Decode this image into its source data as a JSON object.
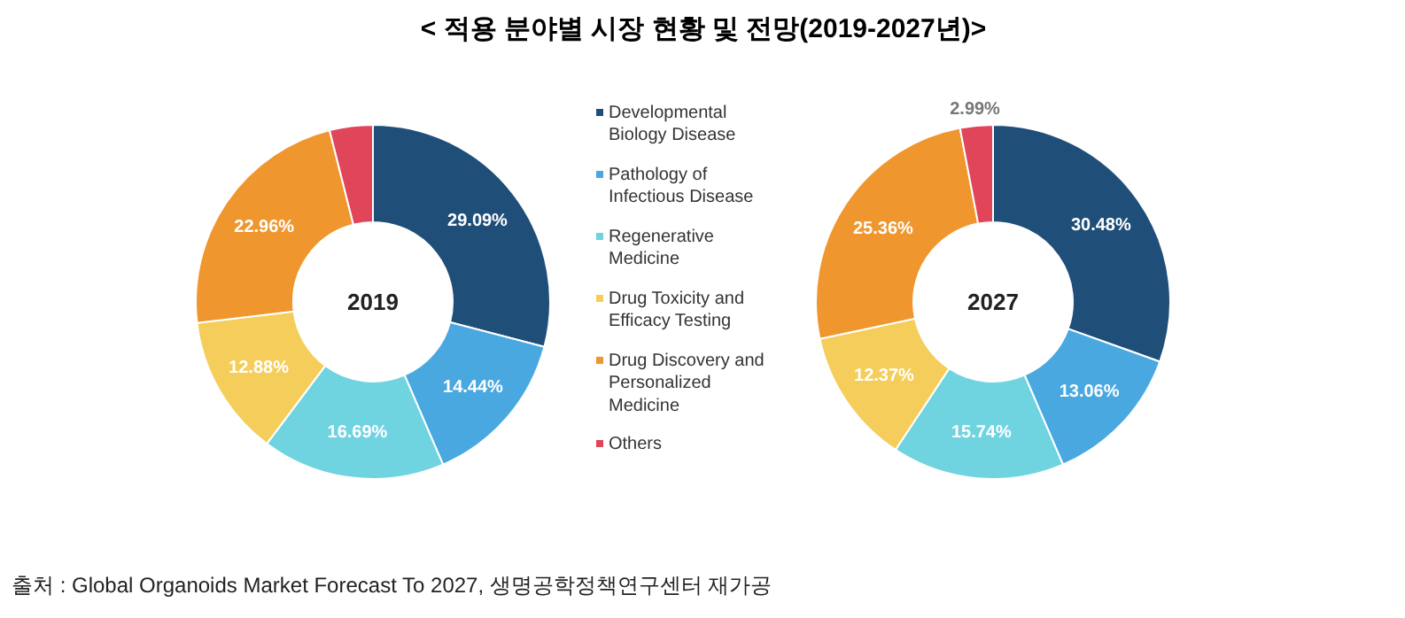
{
  "chart_data": {
    "type": "donut",
    "title": "< 적용 분야별 시장 현황 및 전망(2019-2027년)>",
    "legend": "right",
    "annotations": [
      "출처 : Global Organoids Market Forecast To 2027, 생명공학정책연구센터 재가공"
    ],
    "categories": [
      "Developmental Biology Disease",
      "Pathology of Infectious Disease",
      "Regenerative Medicine",
      "Drug Toxicity and Efficacy Testing",
      "Drug Discovery and Personalized Medicine",
      "Others"
    ],
    "colors": [
      "#1f4e79",
      "#4aa8e0",
      "#6fd3e0",
      "#f5cd5a",
      "#f0962e",
      "#e0455a"
    ],
    "series": [
      {
        "name": "2019",
        "values": [
          29.09,
          14.44,
          16.69,
          12.88,
          22.96,
          3.94
        ],
        "value_labels": [
          "29.09%",
          "14.44%",
          "16.69%",
          "12.88%",
          "22.96%",
          null
        ]
      },
      {
        "name": "2027",
        "values": [
          30.48,
          13.06,
          15.74,
          12.37,
          25.36,
          2.99
        ],
        "value_labels": [
          "30.48%",
          "13.06%",
          "15.74%",
          "12.37%",
          "25.36%",
          "2.99%"
        ]
      }
    ]
  }
}
